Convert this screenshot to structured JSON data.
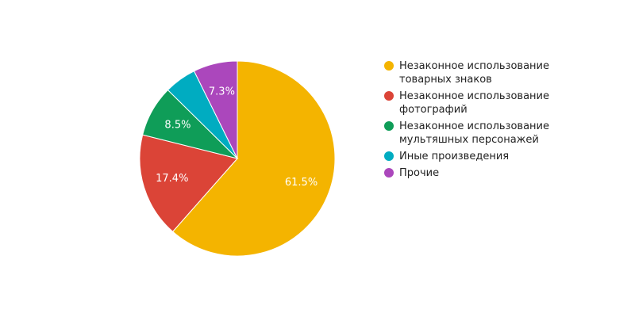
{
  "chart_data": {
    "type": "pie",
    "title": "",
    "legend_position": "right",
    "slices": [
      {
        "label": "Незаконное использование товарных знаков",
        "value": 61.5,
        "display": "61.5%",
        "color": "#f4b400"
      },
      {
        "label": "Незаконное использование фотографий",
        "value": 17.4,
        "display": "17.4%",
        "color": "#db4437"
      },
      {
        "label": "Незаконное использование мультяшных персонажей",
        "value": 8.5,
        "display": "8.5%",
        "color": "#0f9d58"
      },
      {
        "label": "Иные произведения",
        "value": 5.3,
        "display": "",
        "color": "#00acc1"
      },
      {
        "label": "Прочие",
        "value": 7.3,
        "display": "7.3%",
        "color": "#ab47bc"
      }
    ]
  }
}
